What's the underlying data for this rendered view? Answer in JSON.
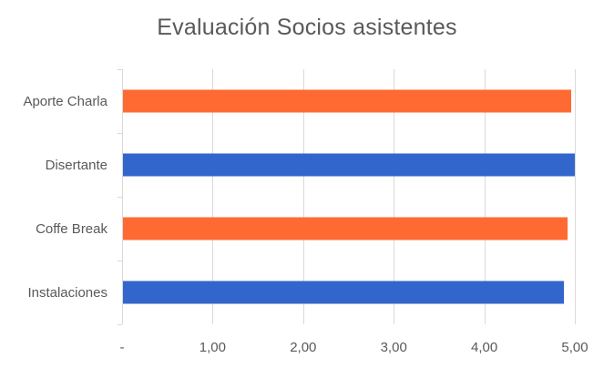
{
  "chart_data": {
    "type": "bar",
    "orientation": "horizontal",
    "title": "Evaluación Socios asistentes",
    "xlabel": "",
    "ylabel": "",
    "categories": [
      "Aporte Charla",
      "Disertante",
      "Coffe Break",
      "Instalaciones"
    ],
    "values": [
      4.96,
      5.0,
      4.92,
      4.88
    ],
    "bar_colors": [
      "#FF6A33",
      "#3366CC",
      "#FF6A33",
      "#3366CC"
    ],
    "xlim": [
      0,
      5
    ],
    "x_ticks": [
      {
        "value": 0,
        "label": "-"
      },
      {
        "value": 1,
        "label": "1,00"
      },
      {
        "value": 2,
        "label": "2,00"
      },
      {
        "value": 3,
        "label": "3,00"
      },
      {
        "value": 4,
        "label": "4,00"
      },
      {
        "value": 5,
        "label": "5,00"
      }
    ],
    "grid": true,
    "legend": "none"
  }
}
